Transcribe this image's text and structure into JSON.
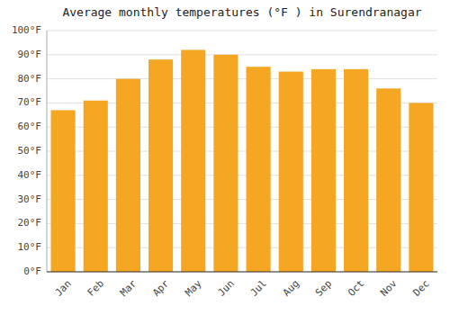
{
  "chart_data": {
    "type": "bar",
    "title": "Average monthly temperatures (°F ) in Surendranagar",
    "categories": [
      "Jan",
      "Feb",
      "Mar",
      "Apr",
      "May",
      "Jun",
      "Jul",
      "Aug",
      "Sep",
      "Oct",
      "Nov",
      "Dec"
    ],
    "values": [
      67,
      71,
      80,
      88,
      92,
      90,
      85,
      83,
      84,
      84,
      76,
      70
    ],
    "color": "#F5A623",
    "ylim": [
      0,
      100
    ],
    "yticks": [
      {
        "value": 0,
        "label": "0°F"
      },
      {
        "value": 10,
        "label": "10°F"
      },
      {
        "value": 20,
        "label": "20°F"
      },
      {
        "value": 30,
        "label": "30°F"
      },
      {
        "value": 40,
        "label": "40°F"
      },
      {
        "value": 50,
        "label": "50°F"
      },
      {
        "value": 60,
        "label": "60°F"
      },
      {
        "value": 70,
        "label": "70°F"
      },
      {
        "value": 80,
        "label": "80°F"
      },
      {
        "value": 90,
        "label": "90°F"
      },
      {
        "value": 100,
        "label": "100°F"
      }
    ],
    "grid": true
  }
}
